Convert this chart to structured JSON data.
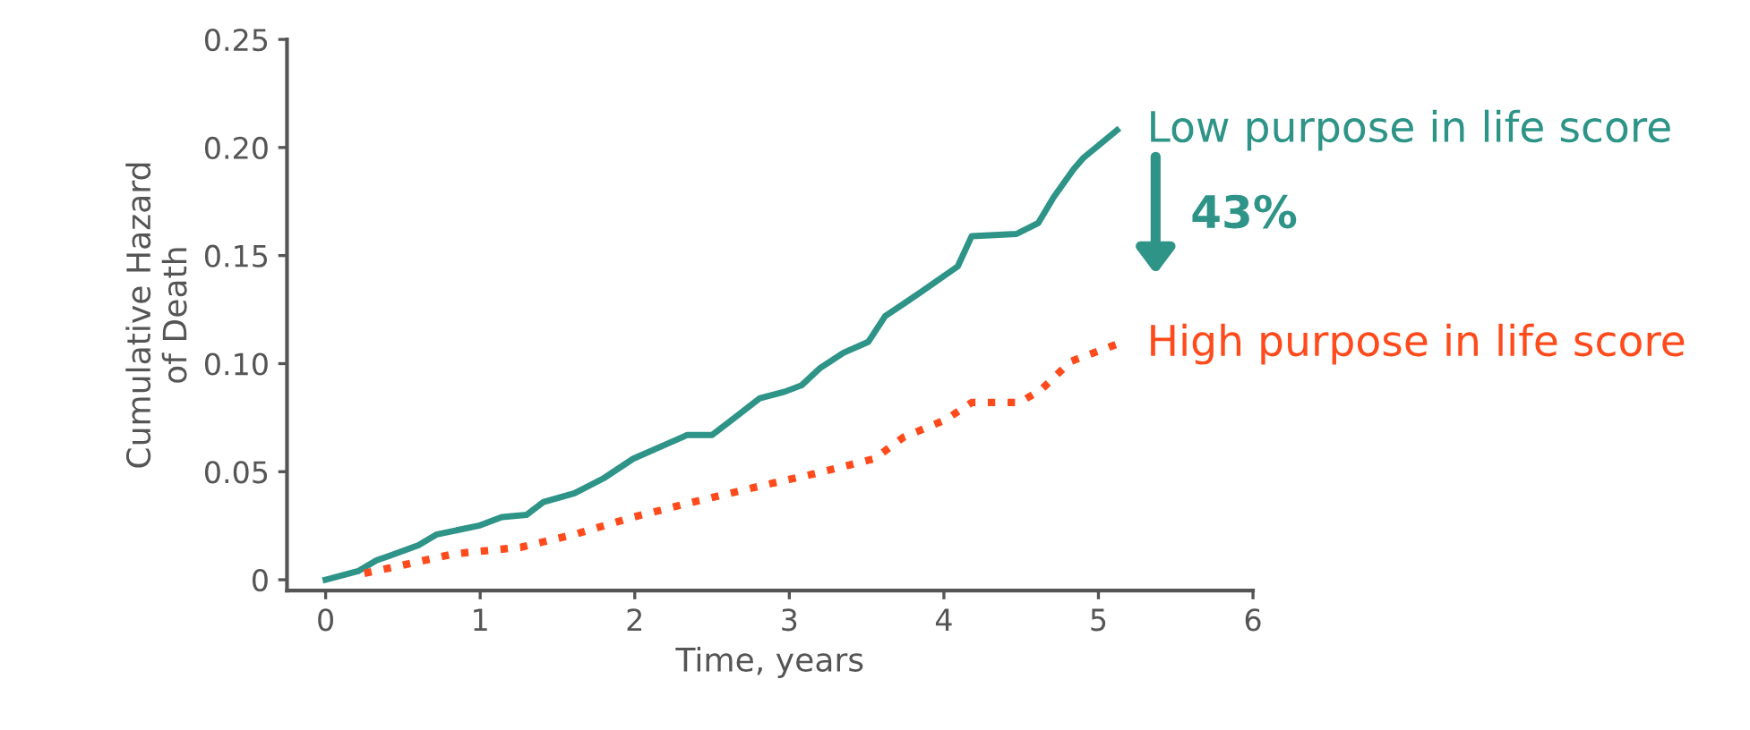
{
  "chart_data": {
    "type": "line",
    "xlabel": "Time, years",
    "ylabel": "Cumulative Hazard\nof Death",
    "xlim": [
      -0.25,
      6
    ],
    "ylim": [
      -0.005,
      0.25
    ],
    "xticks": [
      0,
      1,
      2,
      3,
      4,
      5,
      6
    ],
    "yticks": [
      {
        "value": 0,
        "label": "0"
      },
      {
        "value": 0.05,
        "label": "0.05"
      },
      {
        "value": 0.1,
        "label": "0.10"
      },
      {
        "value": 0.15,
        "label": "0.15"
      },
      {
        "value": 0.2,
        "label": "0.20"
      },
      {
        "value": 0.25,
        "label": "0.25"
      }
    ],
    "grid": false,
    "legend": false,
    "series": [
      {
        "name": "Low purpose in life score",
        "color": "#2e9488",
        "line_style": "solid",
        "x": [
          0,
          0.21,
          0.33,
          0.41,
          0.6,
          0.72,
          0.99,
          1.14,
          1.3,
          1.41,
          1.61,
          1.8,
          1.99,
          2.15,
          2.34,
          2.5,
          2.61,
          2.81,
          2.97,
          3.08,
          3.2,
          3.35,
          3.51,
          3.62,
          3.85,
          4.09,
          4.18,
          4.47,
          4.61,
          4.71,
          4.84,
          4.9,
          5.12
        ],
        "values": [
          0,
          0.004,
          0.009,
          0.011,
          0.016,
          0.021,
          0.025,
          0.029,
          0.03,
          0.036,
          0.04,
          0.047,
          0.056,
          0.061,
          0.067,
          0.067,
          0.073,
          0.084,
          0.087,
          0.09,
          0.098,
          0.105,
          0.11,
          0.122,
          0.133,
          0.145,
          0.159,
          0.16,
          0.165,
          0.177,
          0.19,
          0.195,
          0.208
        ]
      },
      {
        "name": "High purpose in life score",
        "color": "#ff4a1c",
        "line_style": "dotted",
        "x": [
          0.25,
          0.45,
          0.83,
          1.26,
          1.61,
          1.99,
          2.38,
          2.85,
          3.16,
          3.55,
          3.74,
          4.01,
          4.18,
          4.49,
          4.63,
          4.82,
          5.12
        ],
        "values": [
          0.003,
          0.006,
          0.012,
          0.015,
          0.021,
          0.029,
          0.036,
          0.044,
          0.049,
          0.056,
          0.066,
          0.074,
          0.082,
          0.082,
          0.088,
          0.101,
          0.109
        ]
      }
    ],
    "annotations": [
      "43%"
    ]
  }
}
